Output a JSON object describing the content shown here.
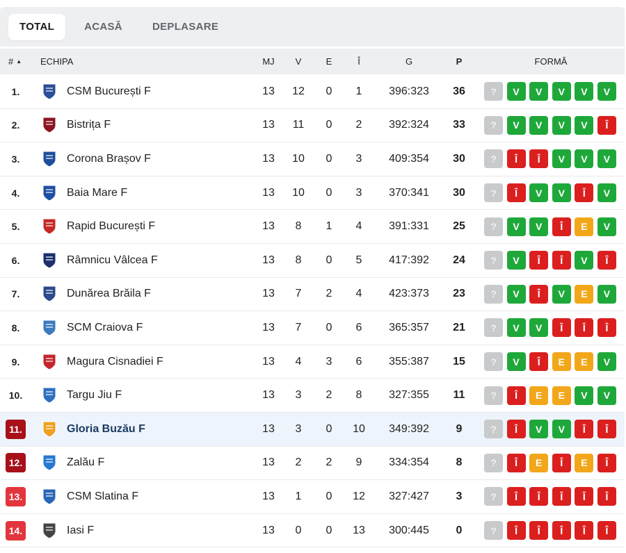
{
  "tabs": [
    {
      "label": "TOTAL",
      "active": true
    },
    {
      "label": "ACASĂ",
      "active": false
    },
    {
      "label": "DEPLASARE",
      "active": false
    }
  ],
  "columns": {
    "rank": "#",
    "sort_icon": "▲",
    "team": "ECHIPA",
    "mj": "MJ",
    "v": "V",
    "e": "E",
    "i": "Î",
    "g": "G",
    "p": "P",
    "form": "FORMĂ"
  },
  "form_colors": {
    "V": "#1fa83a",
    "Î": "#db1f1f",
    "E": "#f2a71b",
    "?": "#c8cacc"
  },
  "rank_badge_colors": {
    "dark": "#a8101a",
    "red": "#e2353d"
  },
  "rows": [
    {
      "rank": "1.",
      "badge": "",
      "team": "CSM București F",
      "logo": "csm-bucuresti-crest",
      "logo_color": "#2a4f9a",
      "mj": "13",
      "v": "12",
      "e": "0",
      "i": "1",
      "g": "396:323",
      "p": "36",
      "form": [
        "?",
        "V",
        "V",
        "V",
        "V",
        "V"
      ]
    },
    {
      "rank": "2.",
      "badge": "",
      "team": "Bistrița F",
      "logo": "bistrita-crest",
      "logo_color": "#8a1622",
      "mj": "13",
      "v": "11",
      "e": "0",
      "i": "2",
      "g": "392:324",
      "p": "33",
      "form": [
        "?",
        "V",
        "V",
        "V",
        "V",
        "Î"
      ]
    },
    {
      "rank": "3.",
      "badge": "",
      "team": "Corona Brașov F",
      "logo": "corona-brasov-crest",
      "logo_color": "#1e4f9c",
      "mj": "13",
      "v": "10",
      "e": "0",
      "i": "3",
      "g": "409:354",
      "p": "30",
      "form": [
        "?",
        "Î",
        "Î",
        "V",
        "V",
        "V"
      ]
    },
    {
      "rank": "4.",
      "badge": "",
      "team": "Baia Mare F",
      "logo": "baia-mare-crest",
      "logo_color": "#1d4fa3",
      "mj": "13",
      "v": "10",
      "e": "0",
      "i": "3",
      "g": "370:341",
      "p": "30",
      "form": [
        "?",
        "Î",
        "V",
        "V",
        "Î",
        "V"
      ]
    },
    {
      "rank": "5.",
      "badge": "",
      "team": "Rapid București F",
      "logo": "rapid-bucuresti-crest",
      "logo_color": "#c62828",
      "mj": "13",
      "v": "8",
      "e": "1",
      "i": "4",
      "g": "391:331",
      "p": "25",
      "form": [
        "?",
        "V",
        "V",
        "Î",
        "E",
        "V"
      ]
    },
    {
      "rank": "6.",
      "badge": "",
      "team": "Râmnicu Vâlcea F",
      "logo": "ramnicu-valcea-crest",
      "logo_color": "#1c2f6e",
      "mj": "13",
      "v": "8",
      "e": "0",
      "i": "5",
      "g": "417:392",
      "p": "24",
      "form": [
        "?",
        "V",
        "Î",
        "Î",
        "V",
        "Î"
      ]
    },
    {
      "rank": "7.",
      "badge": "",
      "team": "Dunărea Brăila F",
      "logo": "dunarea-braila-crest",
      "logo_color": "#2c4a8c",
      "mj": "13",
      "v": "7",
      "e": "2",
      "i": "4",
      "g": "423:373",
      "p": "23",
      "form": [
        "?",
        "V",
        "Î",
        "V",
        "E",
        "V"
      ]
    },
    {
      "rank": "8.",
      "badge": "",
      "team": "SCM Craiova F",
      "logo": "scm-craiova-crest",
      "logo_color": "#3b7bc0",
      "mj": "13",
      "v": "7",
      "e": "0",
      "i": "6",
      "g": "365:357",
      "p": "21",
      "form": [
        "?",
        "V",
        "V",
        "Î",
        "Î",
        "Î"
      ]
    },
    {
      "rank": "9.",
      "badge": "",
      "team": "Magura Cisnadiei F",
      "logo": "magura-cisnadiei-crest",
      "logo_color": "#c3262e",
      "mj": "13",
      "v": "4",
      "e": "3",
      "i": "6",
      "g": "355:387",
      "p": "15",
      "form": [
        "?",
        "V",
        "Î",
        "E",
        "E",
        "V"
      ]
    },
    {
      "rank": "10.",
      "badge": "",
      "team": "Targu Jiu F",
      "logo": "targu-jiu-crest",
      "logo_color": "#2f6fc0",
      "mj": "13",
      "v": "3",
      "e": "2",
      "i": "8",
      "g": "327:355",
      "p": "11",
      "form": [
        "?",
        "Î",
        "E",
        "E",
        "V",
        "V"
      ]
    },
    {
      "rank": "11.",
      "badge": "dark",
      "team": "Gloria Buzău F",
      "logo": "gloria-buzau-crest",
      "logo_color": "#f0a020",
      "mj": "13",
      "v": "3",
      "e": "0",
      "i": "10",
      "g": "349:392",
      "p": "9",
      "form": [
        "?",
        "Î",
        "V",
        "V",
        "Î",
        "Î"
      ],
      "highlight": true
    },
    {
      "rank": "12.",
      "badge": "dark",
      "team": "Zalău F",
      "logo": "zalau-crest",
      "logo_color": "#2878d0",
      "mj": "13",
      "v": "2",
      "e": "2",
      "i": "9",
      "g": "334:354",
      "p": "8",
      "form": [
        "?",
        "Î",
        "E",
        "Î",
        "E",
        "Î"
      ]
    },
    {
      "rank": "13.",
      "badge": "red",
      "team": "CSM Slatina F",
      "logo": "csm-slatina-crest",
      "logo_color": "#2a66b8",
      "mj": "13",
      "v": "1",
      "e": "0",
      "i": "12",
      "g": "327:427",
      "p": "3",
      "form": [
        "?",
        "Î",
        "Î",
        "Î",
        "Î",
        "Î"
      ]
    },
    {
      "rank": "14.",
      "badge": "red",
      "team": "Iasi F",
      "logo": "iasi-crest",
      "logo_color": "#444444",
      "mj": "13",
      "v": "0",
      "e": "0",
      "i": "13",
      "g": "300:445",
      "p": "0",
      "form": [
        "?",
        "Î",
        "Î",
        "Î",
        "Î",
        "Î"
      ]
    }
  ]
}
